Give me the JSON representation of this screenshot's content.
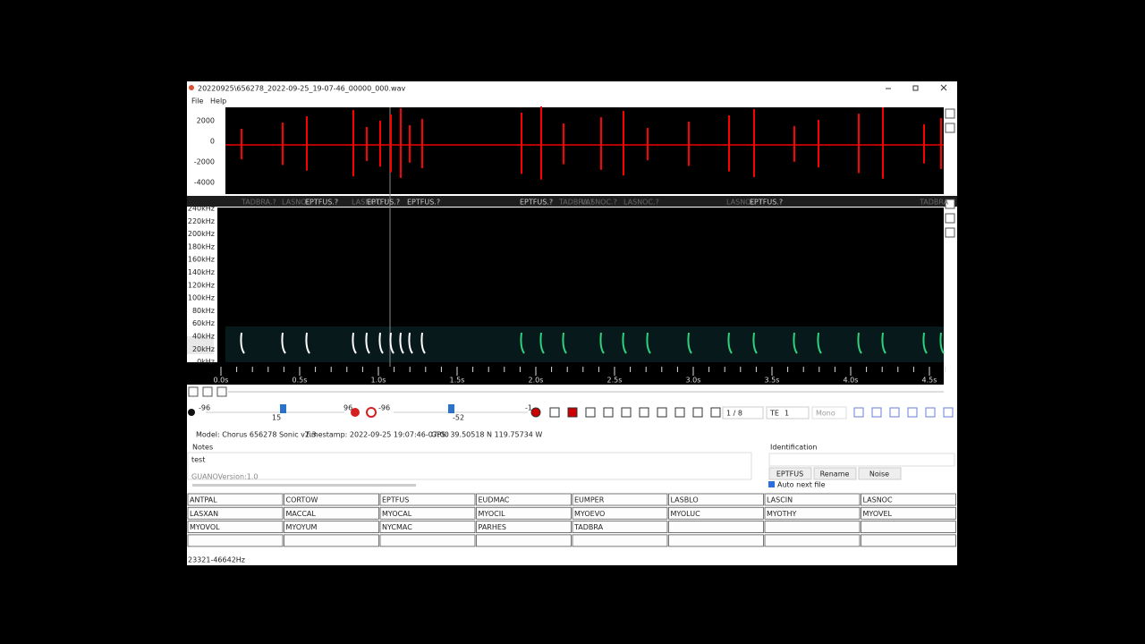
{
  "window": {
    "title": "20220925\\656278_2022-09-25_19-07-46_00000_000.wav",
    "menu": [
      "File",
      "Help"
    ]
  },
  "waveform": {
    "axis_labels": [
      "2000",
      "0",
      "-2000",
      "-4000"
    ]
  },
  "detections": [
    "TADBRA.?",
    "LASNOC.?",
    "EPTFUS.?",
    "LASNOC.?",
    "EPTFUS.?",
    "EPTFUS.?",
    "EPTFUS.?",
    "TADBRA.?",
    "LASNOC.?",
    "LASNOC.?",
    "LASNOC.?",
    "EPTFUS.?",
    "TADBRA"
  ],
  "spectrogram": {
    "freq_labels": [
      "240kHz",
      "220kHz",
      "200kHz",
      "180kHz",
      "160kHz",
      "140kHz",
      "120kHz",
      "100kHz",
      "80kHz",
      "60kHz",
      "40kHz",
      "20kHz",
      "0kHz"
    ],
    "time_labels": [
      "0.0s",
      "0.5s",
      "1.0s",
      "1.5s",
      "2.0s",
      "2.5s",
      "3.0s",
      "3.5s",
      "4.0s",
      "4.5s"
    ]
  },
  "controls": {
    "gain_min": "-96",
    "gain_value": "15",
    "gain_max": "96",
    "threshold_min": "-96",
    "threshold_value": "-52",
    "threshold_max": "-1",
    "page": "1 / 8",
    "te_label": "TE",
    "te_value": "1",
    "channel": "Mono"
  },
  "metadata": {
    "model": "Model: Chorus 656278 Sonic v2.3",
    "timestamp": "Timestamp: 2022-09-25 19:07:46-07:00",
    "gps": "GPS: 39.50518 N 119.75734 W"
  },
  "notes": {
    "label": "Notes",
    "lines": [
      "test",
      "GUANOVersion:1.0"
    ]
  },
  "identification": {
    "label": "Identification",
    "buttons": [
      "EPTFUS",
      "Rename",
      "Noise"
    ],
    "auto_next": "Auto next file"
  },
  "species": [
    "ANTPAL",
    "CORTOW",
    "EPTFUS",
    "EUDMAC",
    "EUMPER",
    "LASBLO",
    "LASCIN",
    "LASNOC",
    "LASXAN",
    "MACCAL",
    "MYOCAL",
    "MYOCIL",
    "MYOEVO",
    "MYOLUC",
    "MYOTHY",
    "MYOVEL",
    "MYOVOL",
    "MYOYUM",
    "NYCMAC",
    "PARHES",
    "TADBRA"
  ],
  "status": "23321-46642Hz"
}
